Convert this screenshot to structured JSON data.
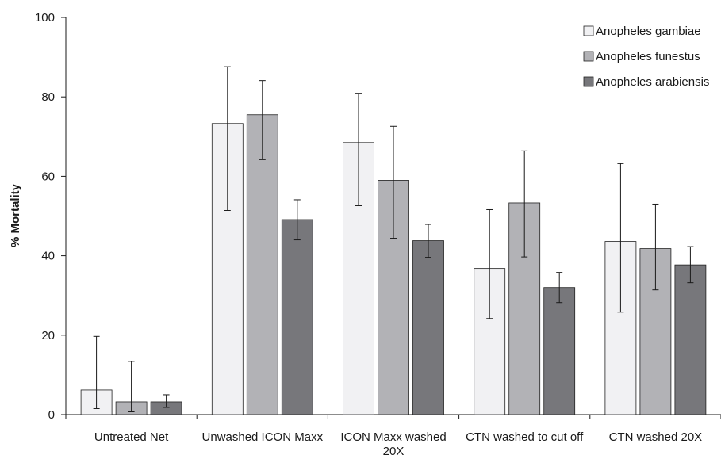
{
  "chart_data": {
    "type": "bar",
    "title": "",
    "xlabel": "",
    "ylabel": "% Mortality",
    "ylim": [
      0,
      100
    ],
    "yticks": [
      0,
      20,
      40,
      60,
      80,
      100
    ],
    "grid": false,
    "legend_position": "top-right",
    "categories": [
      [
        "Untreated Net"
      ],
      [
        "Unwashed ICON Maxx"
      ],
      [
        "ICON Maxx washed",
        "20X"
      ],
      [
        "CTN washed to cut off"
      ],
      [
        "CTN washed 20X"
      ]
    ],
    "series": [
      {
        "name": "Anopheles gambiae",
        "color": "#f1f1f3",
        "values": [
          6.2,
          73.3,
          68.5,
          36.8,
          43.6
        ],
        "err_low": [
          1.5,
          51.4,
          52.6,
          24.2,
          25.8
        ],
        "err_high": [
          19.7,
          87.6,
          80.9,
          51.6,
          63.2
        ]
      },
      {
        "name": "Anopheles funestus",
        "color": "#b2b2b6",
        "values": [
          3.2,
          75.5,
          59.0,
          53.3,
          41.8
        ],
        "err_low": [
          0.7,
          64.2,
          44.4,
          39.7,
          31.4
        ],
        "err_high": [
          13.4,
          84.1,
          72.6,
          66.4,
          53.0
        ]
      },
      {
        "name": "Anopheles arabiensis",
        "color": "#77777b",
        "values": [
          3.2,
          49.1,
          43.8,
          32.0,
          37.7
        ],
        "err_low": [
          1.8,
          44.0,
          39.6,
          28.2,
          33.2
        ],
        "err_high": [
          5.0,
          54.1,
          47.9,
          35.8,
          42.3
        ]
      }
    ]
  }
}
